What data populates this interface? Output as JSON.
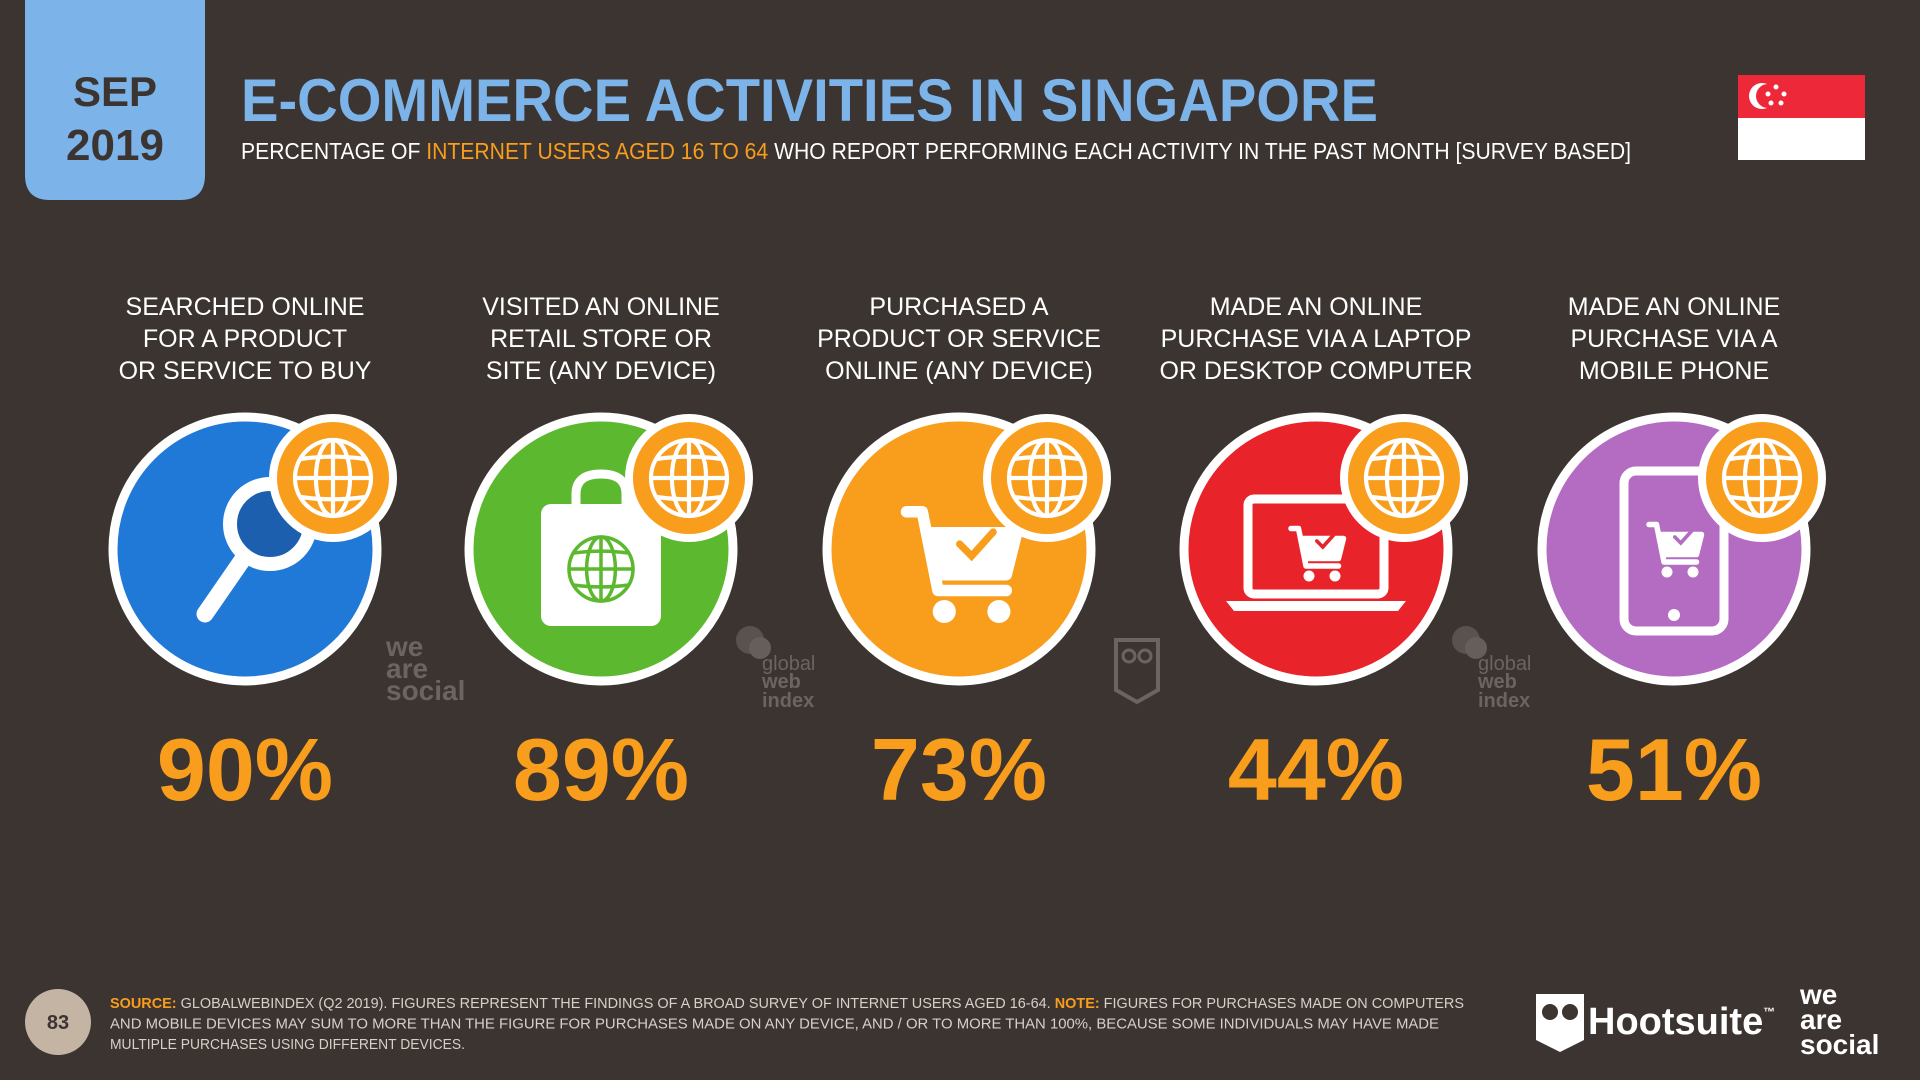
{
  "header": {
    "date_month": "SEP",
    "date_year": "2019",
    "title": "E-COMMERCE ACTIVITIES IN SINGAPORE",
    "subtitle_before": "PERCENTAGE OF ",
    "subtitle_highlight": "INTERNET USERS AGED 16 TO 64",
    "subtitle_after": " WHO REPORT PERFORMING EACH ACTIVITY IN THE PAST MONTH [SURVEY BASED]"
  },
  "activities": [
    {
      "label_lines": [
        "SEARCHED ONLINE",
        "FOR A PRODUCT",
        "OR SERVICE TO BUY"
      ],
      "value": "90%",
      "color": "#2079d6"
    },
    {
      "label_lines": [
        "VISITED AN ONLINE",
        "RETAIL STORE OR",
        "SITE (ANY DEVICE)"
      ],
      "value": "89%",
      "color": "#5cb82e"
    },
    {
      "label_lines": [
        "PURCHASED A",
        "PRODUCT OR SERVICE",
        "ONLINE (ANY DEVICE)"
      ],
      "value": "73%",
      "color": "#f99d1c"
    },
    {
      "label_lines": [
        "MADE AN ONLINE",
        "PURCHASE VIA A LAPTOP",
        "OR DESKTOP COMPUTER"
      ],
      "value": "44%",
      "color": "#e8232a"
    },
    {
      "label_lines": [
        "MADE AN ONLINE",
        "PURCHASE VIA A",
        "MOBILE PHONE"
      ],
      "value": "51%",
      "color": "#b46bc2"
    }
  ],
  "watermarks": {
    "we_are_social": [
      "we",
      "are",
      "social"
    ],
    "global_web_index": [
      "global",
      "web",
      "index"
    ]
  },
  "footer": {
    "page": "83",
    "lines": [
      [
        {
          "text": "SOURCE:",
          "bold": true
        },
        {
          "text": " GLOBALWEBINDEX (Q2 2019). FIGURES REPRESENT THE FINDINGS OF A BROAD SURVEY OF INTERNET USERS AGED 16-64. ",
          "bold": false
        },
        {
          "text": "NOTE:",
          "bold": true
        },
        {
          "text": " FIGURES FOR PURCHASES MADE ON COMPUTERS",
          "bold": false
        }
      ],
      [
        {
          "text": "AND MOBILE DEVICES MAY SUM TO MORE THAN THE FIGURE FOR PURCHASES MADE ON ANY DEVICE, AND / OR TO MORE THAN 100%, BECAUSE SOME INDIVIDUALS MAY HAVE MADE",
          "bold": false
        }
      ],
      [
        {
          "text": "MULTIPLE PURCHASES USING DIFFERENT DEVICES.",
          "bold": false
        }
      ]
    ],
    "hootsuite": "Hootsuite",
    "trademark": "™",
    "we_are_social": [
      "we",
      "are",
      "social"
    ]
  }
}
